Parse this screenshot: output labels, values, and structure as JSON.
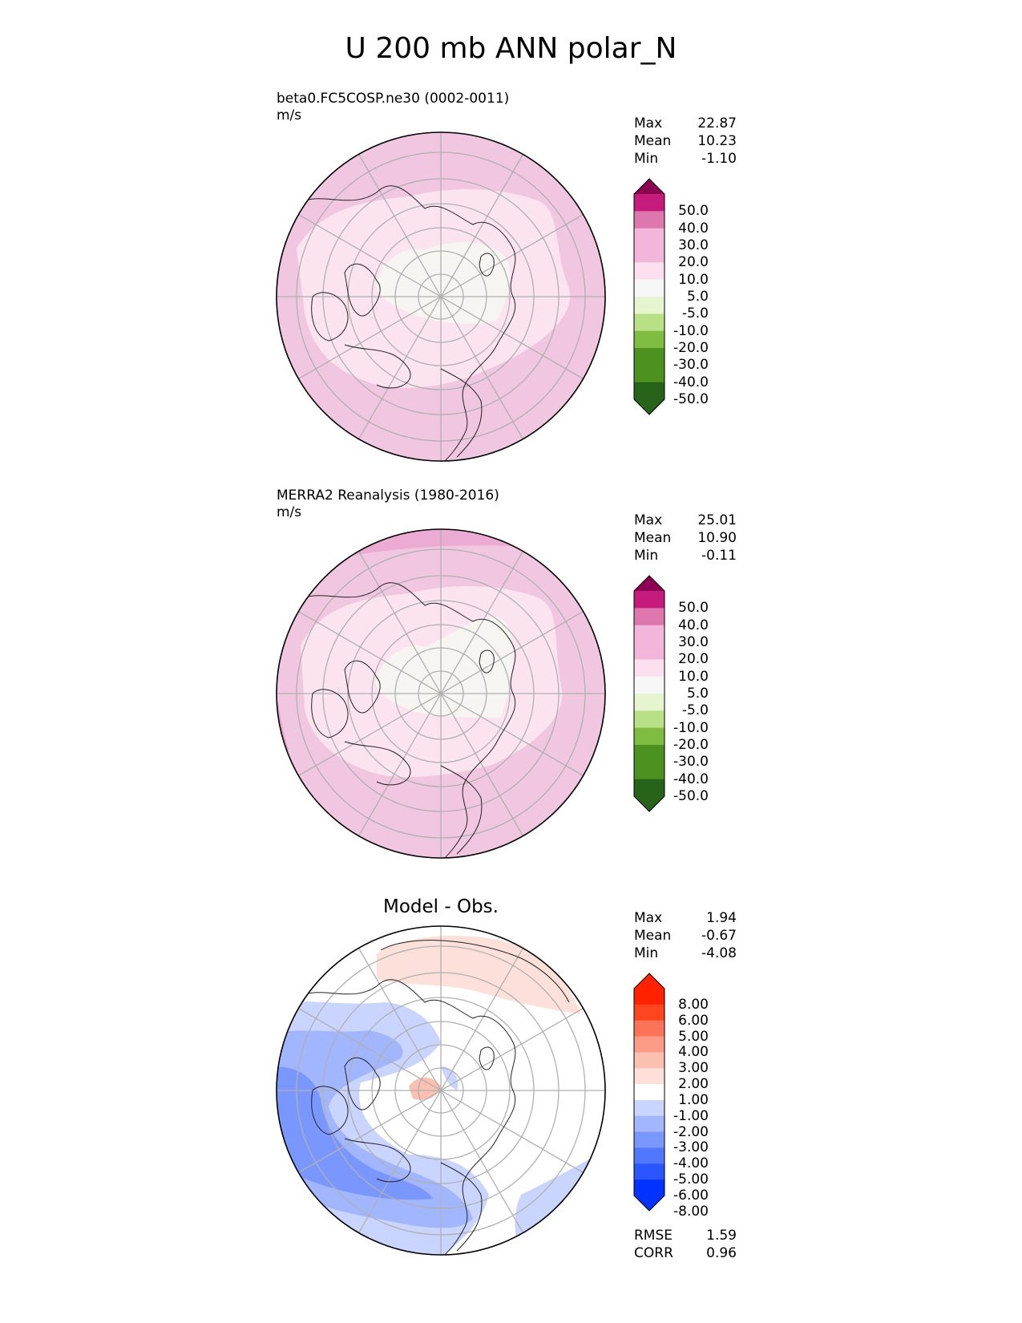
{
  "title": "U 200 mb ANN polar_N",
  "colors": {
    "pink_scale": [
      "#276419",
      "#4d9221",
      "#7fbc41",
      "#b8e186",
      "#e6f5d0",
      "#f7f7f7",
      "#fde0ef",
      "#f1b6da",
      "#de77ae",
      "#c51b7d",
      "#8e0152"
    ],
    "diff_scale": [
      "#0033ff",
      "#2a55ff",
      "#5277ff",
      "#7a97ff",
      "#a2b6ff",
      "#cad5ff",
      "#f0f3ff",
      "#ffffff",
      "#fde0d9",
      "#fcc0b1",
      "#fc9b86",
      "#fc7457",
      "#ff4520",
      "#ff2200"
    ]
  },
  "chart_data": [
    {
      "type": "heatmap",
      "projection": "north polar stereographic",
      "title": "beta0.FC5COSP.ne30 (0002-0011)",
      "units": "m/s",
      "stats": {
        "max": "22.87",
        "mean": "10.23",
        "min": "-1.10"
      },
      "colorbar_levels": [
        "50.0",
        "40.0",
        "30.0",
        "20.0",
        "10.0",
        "5.0",
        "-5.0",
        "-10.0",
        "-20.0",
        "-30.0",
        "-40.0",
        "-50.0"
      ]
    },
    {
      "type": "heatmap",
      "projection": "north polar stereographic",
      "title": "MERRA2 Reanalysis (1980-2016)",
      "units": "m/s",
      "stats": {
        "max": "25.01",
        "mean": "10.90",
        "min": "-0.11"
      },
      "colorbar_levels": [
        "50.0",
        "40.0",
        "30.0",
        "20.0",
        "10.0",
        "5.0",
        "-5.0",
        "-10.0",
        "-20.0",
        "-30.0",
        "-40.0",
        "-50.0"
      ]
    },
    {
      "type": "heatmap",
      "projection": "north polar stereographic",
      "title": "Model - Obs.",
      "stats": {
        "max": "1.94",
        "mean": "-0.67",
        "min": "-4.08"
      },
      "colorbar_levels": [
        "8.00",
        "6.00",
        "5.00",
        "4.00",
        "3.00",
        "2.00",
        "1.00",
        "-1.00",
        "-2.00",
        "-3.00",
        "-4.00",
        "-5.00",
        "-6.00",
        "-8.00"
      ],
      "metrics": {
        "rmse": "1.59",
        "corr": "0.96"
      }
    }
  ],
  "labels": {
    "max": "Max",
    "mean": "Mean",
    "min": "Min",
    "rmse": "RMSE",
    "corr": "CORR"
  }
}
